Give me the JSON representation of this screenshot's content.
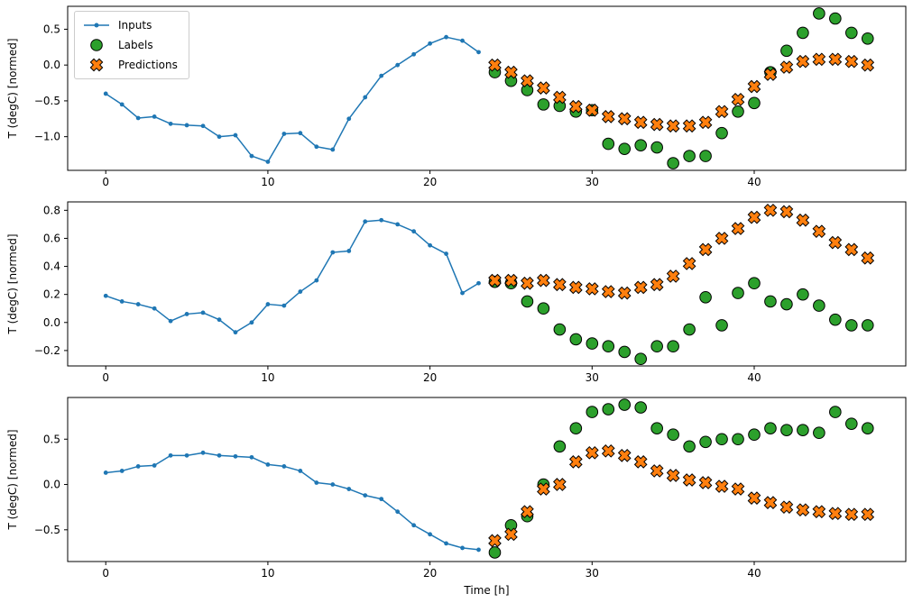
{
  "figure": {
    "xlabel": "Time [h]",
    "ylabel": "T (degC) [normed]"
  },
  "legend": {
    "items": [
      {
        "label": "Inputs",
        "marker": "dot-line"
      },
      {
        "label": "Labels",
        "marker": "circle"
      },
      {
        "label": "Predictions",
        "marker": "x"
      }
    ]
  },
  "colors": {
    "inputs": "#1f77b4",
    "labels": "#2ca02c",
    "predictions": "#ff7f0e",
    "edge": "#000000",
    "axis": "#000000"
  },
  "chart_data": [
    {
      "type": "line+scatter",
      "ylabel": "T (degC) [normed]",
      "xlim": [
        -2.35,
        49.35
      ],
      "ylim": [
        -1.47,
        0.82
      ],
      "xticks": [
        0,
        10,
        20,
        30,
        40
      ],
      "yticks": [
        0.5,
        0.0,
        -0.5,
        -1.0
      ],
      "series": [
        {
          "name": "Inputs",
          "marker": "dot-line",
          "color_key": "inputs",
          "x": [
            0,
            1,
            2,
            3,
            4,
            5,
            6,
            7,
            8,
            9,
            10,
            11,
            12,
            13,
            14,
            15,
            16,
            17,
            18,
            19,
            20,
            21,
            22,
            23
          ],
          "y": [
            -0.4,
            -0.55,
            -0.74,
            -0.72,
            -0.82,
            -0.84,
            -0.85,
            -1.0,
            -0.98,
            -1.27,
            -1.35,
            -0.96,
            -0.95,
            -1.14,
            -1.18,
            -0.75,
            -0.45,
            -0.15,
            0.0,
            0.15,
            0.3,
            0.39,
            0.34,
            0.18
          ]
        },
        {
          "name": "Labels",
          "marker": "circle",
          "color_key": "labels",
          "x": [
            24,
            25,
            26,
            27,
            28,
            29,
            30,
            31,
            32,
            33,
            34,
            35,
            36,
            37,
            38,
            39,
            40,
            41,
            42,
            43,
            44,
            45,
            46,
            47
          ],
          "y": [
            -0.1,
            -0.22,
            -0.35,
            -0.55,
            -0.57,
            -0.65,
            -0.63,
            -1.1,
            -1.17,
            -1.12,
            -1.15,
            -1.37,
            -1.27,
            -1.27,
            -0.95,
            -0.65,
            -0.53,
            -0.1,
            0.2,
            0.45,
            0.72,
            0.65,
            0.45,
            0.37
          ]
        },
        {
          "name": "Predictions",
          "marker": "x",
          "color_key": "predictions",
          "x": [
            24,
            25,
            26,
            27,
            28,
            29,
            30,
            31,
            32,
            33,
            34,
            35,
            36,
            37,
            38,
            39,
            40,
            41,
            42,
            43,
            44,
            45,
            46,
            47
          ],
          "y": [
            0.0,
            -0.1,
            -0.22,
            -0.32,
            -0.45,
            -0.58,
            -0.63,
            -0.72,
            -0.75,
            -0.8,
            -0.83,
            -0.85,
            -0.85,
            -0.8,
            -0.65,
            -0.48,
            -0.3,
            -0.13,
            -0.03,
            0.05,
            0.08,
            0.08,
            0.05,
            0.0
          ]
        }
      ]
    },
    {
      "type": "line+scatter",
      "ylabel": "T (degC) [normed]",
      "xlim": [
        -2.35,
        49.35
      ],
      "ylim": [
        -0.31,
        0.86
      ],
      "xticks": [
        0,
        10,
        20,
        30,
        40
      ],
      "yticks": [
        0.8,
        0.6,
        0.4,
        0.2,
        0.0,
        -0.2
      ],
      "series": [
        {
          "name": "Inputs",
          "marker": "dot-line",
          "color_key": "inputs",
          "x": [
            0,
            1,
            2,
            3,
            4,
            5,
            6,
            7,
            8,
            9,
            10,
            11,
            12,
            13,
            14,
            15,
            16,
            17,
            18,
            19,
            20,
            21,
            22,
            23
          ],
          "y": [
            0.19,
            0.15,
            0.13,
            0.1,
            0.01,
            0.06,
            0.07,
            0.02,
            -0.07,
            0.0,
            0.13,
            0.12,
            0.22,
            0.3,
            0.5,
            0.51,
            0.72,
            0.73,
            0.7,
            0.65,
            0.55,
            0.49,
            0.21,
            0.28
          ]
        },
        {
          "name": "Labels",
          "marker": "circle",
          "color_key": "labels",
          "x": [
            24,
            25,
            26,
            27,
            28,
            29,
            30,
            31,
            32,
            33,
            34,
            35,
            36,
            37,
            38,
            39,
            40,
            41,
            42,
            43,
            44,
            45,
            46,
            47
          ],
          "y": [
            0.29,
            0.28,
            0.15,
            0.1,
            -0.05,
            -0.12,
            -0.15,
            -0.17,
            -0.21,
            -0.26,
            -0.17,
            -0.17,
            -0.05,
            0.18,
            -0.02,
            0.21,
            0.28,
            0.15,
            0.13,
            0.2,
            0.12,
            0.02,
            -0.02,
            -0.02
          ]
        },
        {
          "name": "Predictions",
          "marker": "x",
          "color_key": "predictions",
          "x": [
            24,
            25,
            26,
            27,
            28,
            29,
            30,
            31,
            32,
            33,
            34,
            35,
            36,
            37,
            38,
            39,
            40,
            41,
            42,
            43,
            44,
            45,
            46,
            47
          ],
          "y": [
            0.3,
            0.3,
            0.28,
            0.3,
            0.27,
            0.25,
            0.24,
            0.22,
            0.21,
            0.25,
            0.27,
            0.33,
            0.42,
            0.52,
            0.6,
            0.67,
            0.75,
            0.8,
            0.79,
            0.73,
            0.65,
            0.57,
            0.52,
            0.46
          ]
        }
      ]
    },
    {
      "type": "line+scatter",
      "ylabel": "T (degC) [normed]",
      "xlim": [
        -2.35,
        49.35
      ],
      "ylim": [
        -0.85,
        0.96
      ],
      "xticks": [
        0,
        10,
        20,
        30,
        40
      ],
      "yticks": [
        0.5,
        0.0,
        -0.5
      ],
      "series": [
        {
          "name": "Inputs",
          "marker": "dot-line",
          "color_key": "inputs",
          "x": [
            0,
            1,
            2,
            3,
            4,
            5,
            6,
            7,
            8,
            9,
            10,
            11,
            12,
            13,
            14,
            15,
            16,
            17,
            18,
            19,
            20,
            21,
            22,
            23
          ],
          "y": [
            0.13,
            0.15,
            0.2,
            0.21,
            0.32,
            0.32,
            0.35,
            0.32,
            0.31,
            0.3,
            0.22,
            0.2,
            0.15,
            0.02,
            0.0,
            -0.05,
            -0.12,
            -0.16,
            -0.3,
            -0.45,
            -0.55,
            -0.65,
            -0.7,
            -0.72
          ]
        },
        {
          "name": "Labels",
          "marker": "circle",
          "color_key": "labels",
          "x": [
            24,
            25,
            26,
            27,
            28,
            29,
            30,
            31,
            32,
            33,
            34,
            35,
            36,
            37,
            38,
            39,
            40,
            41,
            42,
            43,
            44,
            45,
            46,
            47
          ],
          "y": [
            -0.75,
            -0.45,
            -0.35,
            0.0,
            0.42,
            0.62,
            0.8,
            0.83,
            0.88,
            0.85,
            0.62,
            0.55,
            0.42,
            0.47,
            0.5,
            0.5,
            0.55,
            0.62,
            0.6,
            0.6,
            0.57,
            0.8,
            0.67,
            0.62
          ]
        },
        {
          "name": "Predictions",
          "marker": "x",
          "color_key": "predictions",
          "x": [
            24,
            25,
            26,
            27,
            28,
            29,
            30,
            31,
            32,
            33,
            34,
            35,
            36,
            37,
            38,
            39,
            40,
            41,
            42,
            43,
            44,
            45,
            46,
            47
          ],
          "y": [
            -0.62,
            -0.55,
            -0.3,
            -0.05,
            0.0,
            0.25,
            0.35,
            0.37,
            0.32,
            0.25,
            0.15,
            0.1,
            0.05,
            0.02,
            -0.02,
            -0.05,
            -0.15,
            -0.2,
            -0.25,
            -0.28,
            -0.3,
            -0.32,
            -0.33,
            -0.33
          ]
        }
      ]
    }
  ]
}
